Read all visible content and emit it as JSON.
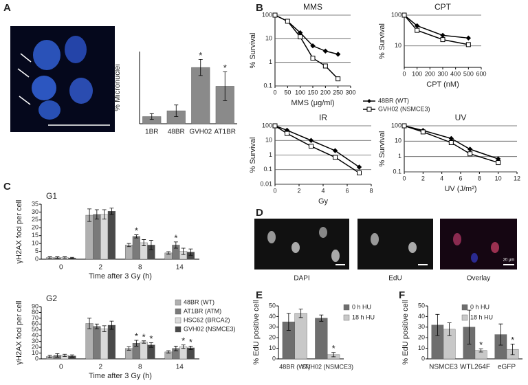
{
  "figure": {
    "panel_labels": [
      "A",
      "B",
      "C",
      "D",
      "E",
      "F"
    ],
    "image_labels": [
      "DAPI",
      "EdU",
      "Overlay"
    ],
    "scale_bar": "20 μm"
  },
  "chart_data": [
    {
      "type": "bar",
      "ylabel": "% Micronuclei",
      "categories": [
        "1BR",
        "48BR",
        "GVH02",
        "AT1BR"
      ],
      "ylim": [
        0,
        25
      ],
      "series": [
        {
          "name": null,
          "color": "#8a8a8a",
          "values": [
            2.5,
            4.5,
            19.5,
            13
          ],
          "errors": [
            1,
            2,
            2.8,
            5
          ],
          "stars": [
            null,
            null,
            "*",
            "*"
          ]
        }
      ]
    },
    {
      "type": "line",
      "title": "MMS",
      "xlabel": "MMS (μg/ml)",
      "ylabel": "% Survival",
      "log_y": true,
      "grid": true,
      "xlim": [
        0,
        300
      ],
      "xticks": [
        0,
        50,
        100,
        150,
        200,
        250,
        300
      ],
      "ylim": [
        0.1,
        100
      ],
      "yticks": [
        0.1,
        1,
        10,
        100
      ],
      "x": [
        0,
        50,
        100,
        150,
        200,
        250
      ],
      "series": [
        {
          "name": "48BR (WT)",
          "color": "#000000",
          "marker": "diamond",
          "values": [
            100,
            55,
            18,
            5,
            3,
            2.2
          ]
        },
        {
          "name": "GVH02 (NSMCE3)",
          "color": "#000000",
          "marker": "square",
          "values": [
            100,
            55,
            12,
            1.5,
            0.7,
            0.2
          ]
        }
      ]
    },
    {
      "type": "line",
      "title": "CPT",
      "xlabel": "CPT (nM)",
      "ylabel": "% Survival",
      "log_y": true,
      "grid": true,
      "xlim": [
        0,
        600
      ],
      "xticks": [
        0,
        100,
        200,
        300,
        400,
        500,
        600
      ],
      "ylim": [
        2,
        100
      ],
      "yticks": [
        10,
        100
      ],
      "x": [
        0,
        100,
        300,
        500
      ],
      "series": [
        {
          "name": "48BR (WT)",
          "color": "#000000",
          "marker": "diamond",
          "values": [
            100,
            45,
            22,
            18
          ]
        },
        {
          "name": "GVH02 (NSMCE3)",
          "color": "#000000",
          "marker": "square",
          "values": [
            100,
            32,
            16,
            11
          ]
        }
      ]
    },
    {
      "type": "line",
      "title": "IR",
      "xlabel": "Gy",
      "ylabel": "% Survival",
      "log_y": true,
      "grid": true,
      "xlim": [
        0,
        8
      ],
      "xticks": [
        0,
        2,
        4,
        6,
        8
      ],
      "ylim": [
        0.01,
        100
      ],
      "yticks": [
        0.01,
        0.1,
        1,
        10,
        100
      ],
      "x": [
        0,
        1,
        3,
        5,
        7
      ],
      "series": [
        {
          "name": "48BR (WT)",
          "color": "#000000",
          "marker": "diamond",
          "values": [
            100,
            50,
            10,
            2,
            0.15
          ]
        },
        {
          "name": "GVH02 (NSMCE3)",
          "color": "#000000",
          "marker": "square",
          "values": [
            100,
            30,
            4,
            0.7,
            0.06
          ]
        }
      ]
    },
    {
      "type": "line",
      "title": "UV",
      "xlabel": "UV (J/m²)",
      "ylabel": "% Survival",
      "log_y": true,
      "grid": true,
      "xlim": [
        0,
        12
      ],
      "xticks": [
        0,
        2,
        4,
        6,
        8,
        10,
        12
      ],
      "ylim": [
        0.1,
        100
      ],
      "yticks": [
        0.1,
        1,
        10,
        100
      ],
      "x": [
        0,
        2,
        5,
        7,
        10
      ],
      "series": [
        {
          "name": "48BR (WT)",
          "color": "#000000",
          "marker": "diamond",
          "values": [
            100,
            50,
            15,
            3,
            0.7
          ]
        },
        {
          "name": "GVH02 (NSMCE3)",
          "color": "#000000",
          "marker": "square",
          "values": [
            100,
            40,
            8,
            1.5,
            0.4
          ]
        }
      ]
    },
    {
      "type": "bar",
      "title": "G1",
      "xlabel": "Time after 3 Gy (h)",
      "ylabel": "γH2AX foci per cell",
      "categories": [
        "0",
        "2",
        "8",
        "14"
      ],
      "ylim": [
        0,
        35
      ],
      "yticks": [
        0,
        5,
        10,
        15,
        20,
        25,
        30,
        35
      ],
      "series": [
        {
          "name": "48BR (WT)",
          "color": "#b0b0b0",
          "values": [
            1,
            28,
            9,
            4
          ],
          "errors": [
            0.5,
            4,
            1,
            0.8
          ],
          "stars": [
            null,
            null,
            null,
            null
          ]
        },
        {
          "name": "AT1BR (ATM)",
          "color": "#7a7a7a",
          "values": [
            1,
            28.5,
            14.5,
            9
          ],
          "errors": [
            0.5,
            3,
            1,
            2
          ],
          "stars": [
            null,
            null,
            "*",
            "*"
          ]
        },
        {
          "name": "HSC62 (BRCA2)",
          "color": "#dadada",
          "values": [
            1,
            28.5,
            10.5,
            5
          ],
          "errors": [
            0.5,
            3,
            2,
            2
          ],
          "stars": [
            null,
            null,
            null,
            null
          ]
        },
        {
          "name": "GVH02 (NSMCE3)",
          "color": "#4a4a4a",
          "values": [
            0.8,
            30.5,
            9,
            4.5
          ],
          "errors": [
            0.4,
            2,
            3,
            2
          ],
          "stars": [
            null,
            null,
            null,
            null
          ]
        }
      ]
    },
    {
      "type": "bar",
      "title": "G2",
      "xlabel": "Time after 3 Gy (h)",
      "ylabel": "γH2AX foci per cell",
      "categories": [
        "0",
        "2",
        "8",
        "14"
      ],
      "ylim": [
        0,
        90
      ],
      "yticks": [
        0,
        10,
        20,
        30,
        40,
        50,
        60,
        70,
        80,
        90
      ],
      "series": [
        {
          "name": "48BR (WT)",
          "color": "#b0b0b0",
          "values": [
            4,
            61,
            18,
            12
          ],
          "errors": [
            2,
            9,
            3,
            2
          ],
          "stars": [
            null,
            null,
            null,
            null
          ]
        },
        {
          "name": "AT1BR (ATM)",
          "color": "#7a7a7a",
          "values": [
            6,
            56,
            27,
            18
          ],
          "errors": [
            3,
            4,
            5,
            4
          ],
          "stars": [
            null,
            null,
            "*",
            null
          ]
        },
        {
          "name": "HSC62 (BRCA2)",
          "color": "#dadada",
          "values": [
            6,
            52,
            29,
            21
          ],
          "errors": [
            2,
            5,
            2,
            3
          ],
          "stars": [
            null,
            null,
            "*",
            "*"
          ]
        },
        {
          "name": "GVH02 (NSMCE3)",
          "color": "#4a4a4a",
          "values": [
            5,
            58,
            24,
            19
          ],
          "errors": [
            2,
            7,
            4,
            3
          ],
          "stars": [
            null,
            null,
            "*",
            "*"
          ]
        }
      ]
    },
    {
      "type": "bar",
      "ylabel": "% EdU positive cell",
      "categories": [
        "48BR (WT)",
        "GVH02 (NSMCE3)"
      ],
      "ylim": [
        0,
        50
      ],
      "yticks": [
        0,
        10,
        20,
        30,
        40,
        50
      ],
      "series": [
        {
          "name": "0 h HU",
          "color": "#6e6e6e",
          "values": [
            35,
            38.5
          ],
          "errors": [
            8,
            3
          ],
          "stars": [
            null,
            null
          ]
        },
        {
          "name": "18 h HU",
          "color": "#c8c8c8",
          "values": [
            43,
            4
          ],
          "errors": [
            4,
            2
          ],
          "stars": [
            null,
            "*"
          ]
        }
      ]
    },
    {
      "type": "bar",
      "ylabel": "% EdU positive cell",
      "categories": [
        "NSMCE3",
        "WTL264F",
        "eGFP"
      ],
      "ylim": [
        0,
        50
      ],
      "yticks": [
        0,
        10,
        20,
        30,
        40,
        50
      ],
      "series": [
        {
          "name": "0 h HU",
          "color": "#6e6e6e",
          "values": [
            32,
            30,
            23
          ],
          "errors": [
            10,
            16,
            10
          ],
          "stars": [
            null,
            null,
            null
          ]
        },
        {
          "name": "18 h HU",
          "color": "#c8c8c8",
          "values": [
            28,
            8,
            9
          ],
          "errors": [
            6,
            1.5,
            5
          ],
          "stars": [
            null,
            "*",
            "*"
          ]
        }
      ]
    }
  ]
}
